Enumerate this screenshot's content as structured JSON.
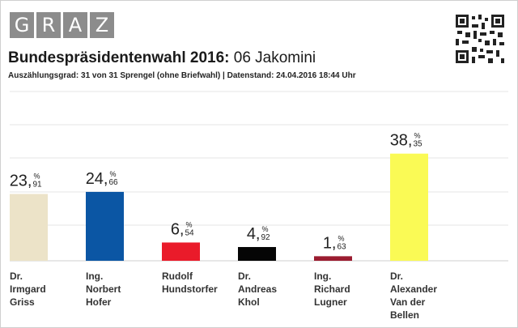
{
  "header": {
    "logo_letters": [
      "G",
      "R",
      "A",
      "Z"
    ],
    "title_bold": "Bundespräsidentenwahl 2016:",
    "title_rest": " 06 Jakomini",
    "subtitle": "Auszählungsgrad: 31 von 31 Sprengel (ohne Briefwahl) | Datenstand: 24.04.2016 18:44 Uhr"
  },
  "qr_icon": "qr-code-icon",
  "chart_data": {
    "type": "bar",
    "categories": [
      "Dr.\nIrmgard\nGriss",
      "Ing.\nNorbert\nHofer",
      "Rudolf\nHundstorfer",
      "Dr.\nAndreas\nKhol",
      "Ing.\nRichard\nLugner",
      "Dr.\nAlexander\nVan der\nBellen"
    ],
    "values": [
      23.91,
      24.66,
      6.54,
      4.92,
      1.63,
      38.35
    ],
    "value_labels": [
      {
        "int": "23,",
        "pct": "%",
        "dec": "91"
      },
      {
        "int": "24,",
        "pct": "%",
        "dec": "66"
      },
      {
        "int": "6,",
        "pct": "%",
        "dec": "54"
      },
      {
        "int": "4,",
        "pct": "%",
        "dec": "92"
      },
      {
        "int": "1,",
        "pct": "%",
        "dec": "63"
      },
      {
        "int": "38,",
        "pct": "%",
        "dec": "35"
      }
    ],
    "colors": [
      "#ece3c8",
      "#0b56a4",
      "#ea1b2a",
      "#050505",
      "#9b1c30",
      "#fafa55"
    ],
    "ylim": [
      0,
      45
    ],
    "grid": true,
    "title": "",
    "xlabel": "",
    "ylabel": ""
  }
}
